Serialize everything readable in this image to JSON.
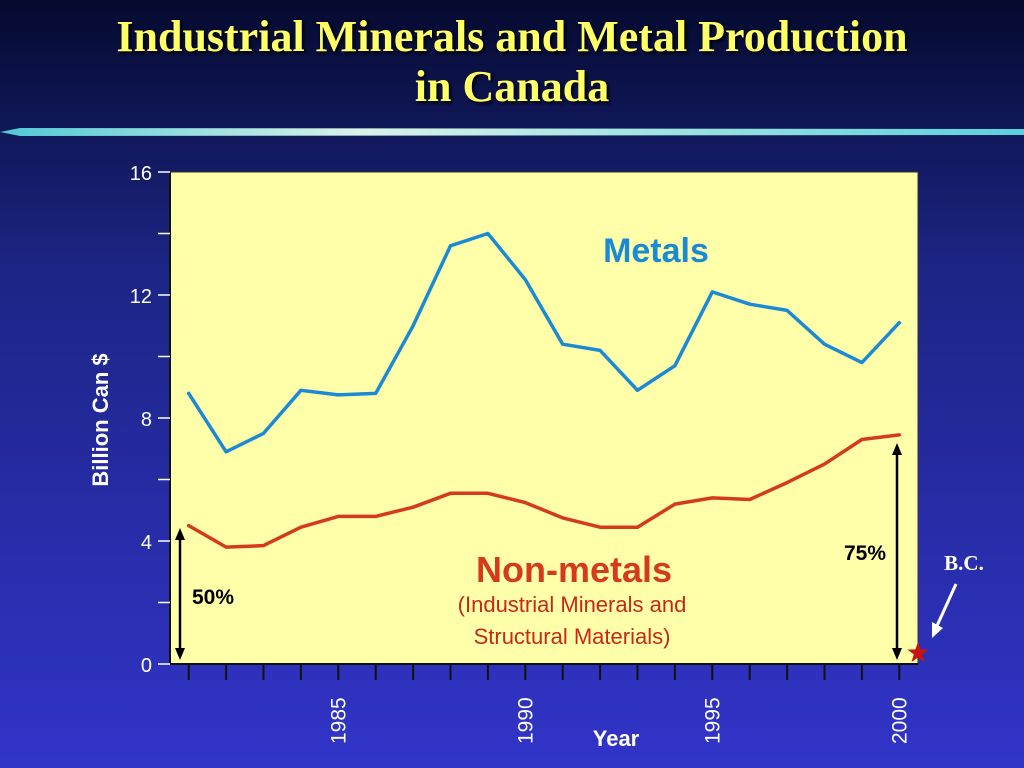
{
  "slide": {
    "title_line1": "Industrial Minerals and Metal Production",
    "title_line2": "in Canada"
  },
  "colors": {
    "title": "#ffff66",
    "plot_background": "#ffffaa",
    "metals": "#1a8ad4",
    "non_metals": "#d63a1e",
    "bc_star": "#cc1111"
  },
  "chart_data": {
    "type": "line",
    "title": "",
    "xlabel": "Year",
    "ylabel": "Billion Can $",
    "ylim": [
      0,
      16
    ],
    "yticks": [
      0,
      4,
      8,
      12,
      16
    ],
    "xlim": [
      1980.5,
      2000.5
    ],
    "xticks_labeled": [
      1985,
      1990,
      1995,
      2000
    ],
    "grid": false,
    "x": [
      1981,
      1982,
      1983,
      1984,
      1985,
      1986,
      1987,
      1988,
      1989,
      1990,
      1991,
      1992,
      1993,
      1994,
      1995,
      1996,
      1997,
      1998,
      1999,
      2000
    ],
    "series": [
      {
        "name": "Metals",
        "values": [
          8.8,
          6.9,
          7.5,
          8.9,
          8.75,
          8.8,
          11.0,
          13.6,
          14.0,
          12.5,
          10.4,
          10.2,
          8.9,
          9.7,
          12.1,
          11.7,
          11.5,
          10.4,
          9.8,
          11.1
        ]
      },
      {
        "name": "Non-metals",
        "values": [
          4.5,
          3.8,
          3.85,
          4.45,
          4.8,
          4.8,
          5.1,
          5.55,
          5.55,
          5.25,
          4.75,
          4.45,
          4.45,
          5.2,
          5.4,
          5.35,
          5.9,
          6.5,
          7.3,
          7.45
        ]
      }
    ],
    "annotations": {
      "metals_label": "Metals",
      "non_metals_label": "Non-metals",
      "non_metals_sublabel_1": "(Industrial Minerals and",
      "non_metals_sublabel_2": "Structural Materials)",
      "share_1981": "50%",
      "share_2000": "75%",
      "bc_label": "B.C."
    }
  }
}
